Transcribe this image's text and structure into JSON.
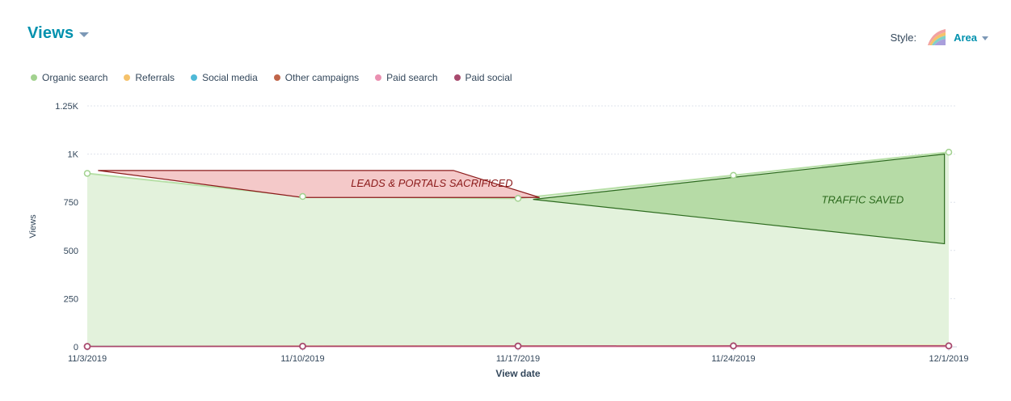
{
  "header": {
    "title": "Views"
  },
  "style_control": {
    "label": "Style:",
    "value": "Area",
    "icon": "area-chart-style-icon"
  },
  "chart_data": {
    "type": "area",
    "x": [
      "11/3/2019",
      "11/10/2019",
      "11/17/2019",
      "11/24/2019",
      "12/1/2019"
    ],
    "xlabel": "View date",
    "ylabel": "Views",
    "ylim": [
      0,
      1250
    ],
    "yticks": [
      0,
      250,
      500,
      750,
      1000,
      1250
    ],
    "ytick_labels": [
      "0",
      "250",
      "500",
      "750",
      "1K",
      "1.25K"
    ],
    "grid": true,
    "legend_position": "top-left",
    "series": [
      {
        "name": "Organic search",
        "color": "#a2d28f",
        "values": [
          900,
          780,
          770,
          890,
          1010
        ]
      },
      {
        "name": "Referrals",
        "color": "#f5c26b",
        "values": [
          3,
          4,
          5,
          6,
          7
        ]
      },
      {
        "name": "Social media",
        "color": "#4fb9d7",
        "values": [
          2,
          2,
          3,
          3,
          4
        ]
      },
      {
        "name": "Other campaigns",
        "color": "#c0654a",
        "values": [
          1,
          1,
          2,
          2,
          2
        ]
      },
      {
        "name": "Paid search",
        "color": "#ea90b1",
        "values": [
          1,
          1,
          1,
          1,
          2
        ]
      },
      {
        "name": "Paid social",
        "color": "#a84a6e",
        "values": [
          2,
          3,
          4,
          5,
          5
        ]
      }
    ],
    "annotations": [
      {
        "label": "LEADS & PORTALS SACRIFICED",
        "fill": "#f4c9c9",
        "stroke": "#8b1a1a",
        "text_color": "#8b1a1a",
        "points": [
          [
            0.05,
            915
          ],
          [
            1.7,
            915
          ],
          [
            2.1,
            775
          ],
          [
            1.0,
            775
          ]
        ],
        "label_at": [
          1.6,
          830
        ]
      },
      {
        "label": "TRAFFIC SAVED",
        "fill": "#b6dba6",
        "stroke": "#2d6b1f",
        "text_color": "#2d6b1f",
        "points": [
          [
            2.07,
            765
          ],
          [
            3.98,
            1000
          ],
          [
            3.98,
            535
          ]
        ],
        "label_at": [
          3.6,
          745
        ]
      }
    ]
  }
}
